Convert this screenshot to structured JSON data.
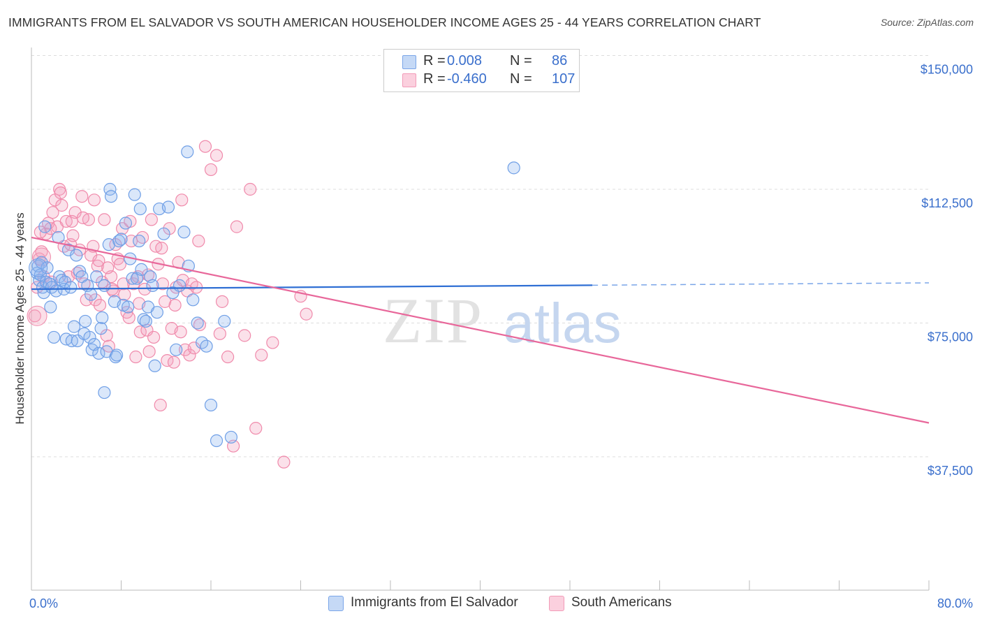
{
  "title": "IMMIGRANTS FROM EL SALVADOR VS SOUTH AMERICAN HOUSEHOLDER INCOME AGES 25 - 44 YEARS CORRELATION CHART",
  "source": "Source: ZipAtlas.com",
  "colors": {
    "blue": "#6f9fe6",
    "blue_line": "#2f6fd4",
    "pink": "#f08aab",
    "pink_line": "#e8679a",
    "tick_label": "#3a6fcc"
  },
  "legend": {
    "row1": {
      "r_label": "R =",
      "r_value": "0.008",
      "n_label": "N =",
      "n_value": "86"
    },
    "row2": {
      "r_label": "R =",
      "r_value": "-0.460",
      "n_label": "N =",
      "n_value": "107"
    }
  },
  "bottom_legend": {
    "series1": "Immigrants from El Salvador",
    "series2": "South Americans"
  },
  "chart_data": {
    "type": "scatter",
    "xlabel": "",
    "ylabel": "Householder Income Ages 25 - 44 years",
    "x_tick_labels": [
      "0.0%",
      "80.0%"
    ],
    "y_tick_labels": [
      "$150,000",
      "$112,500",
      "$75,000",
      "$37,500"
    ],
    "xlim": [
      0,
      80
    ],
    "ylim": [
      0,
      155000
    ],
    "grid": "horizontal-dashed",
    "legend_position": "top-center",
    "series": [
      {
        "name": "Immigrants from El Salvador",
        "color": "#6f9fe6",
        "trend": {
          "x": [
            0,
            50
          ],
          "y": [
            84500,
            85600
          ],
          "dashed_extension_to": 80
        },
        "points": [
          [
            0.5,
            89000
          ],
          [
            0.6,
            91000
          ],
          [
            0.7,
            87000
          ],
          [
            0.8,
            88500
          ],
          [
            0.9,
            92000
          ],
          [
            1.0,
            85000
          ],
          [
            1.1,
            83500
          ],
          [
            1.2,
            102000
          ],
          [
            1.3,
            86500
          ],
          [
            1.4,
            90500
          ],
          [
            1.6,
            86000
          ],
          [
            1.7,
            79500
          ],
          [
            1.8,
            85000
          ],
          [
            2.0,
            71000
          ],
          [
            2.2,
            84000
          ],
          [
            2.4,
            99000
          ],
          [
            2.5,
            88000
          ],
          [
            2.7,
            87000
          ],
          [
            2.9,
            84500
          ],
          [
            3.0,
            86500
          ],
          [
            3.1,
            70500
          ],
          [
            3.3,
            95500
          ],
          [
            3.5,
            85000
          ],
          [
            3.6,
            70000
          ],
          [
            3.8,
            74000
          ],
          [
            4.0,
            94000
          ],
          [
            4.1,
            70000
          ],
          [
            4.3,
            89500
          ],
          [
            4.5,
            88000
          ],
          [
            4.7,
            72000
          ],
          [
            4.8,
            75500
          ],
          [
            5.0,
            85500
          ],
          [
            5.2,
            71000
          ],
          [
            5.4,
            67500
          ],
          [
            5.6,
            69000
          ],
          [
            5.8,
            88000
          ],
          [
            6.0,
            66500
          ],
          [
            6.2,
            73500
          ],
          [
            6.3,
            76500
          ],
          [
            6.5,
            85500
          ],
          [
            6.7,
            67000
          ],
          [
            6.9,
            97000
          ],
          [
            7.0,
            112500
          ],
          [
            7.1,
            110500
          ],
          [
            7.4,
            81000
          ],
          [
            7.5,
            65500
          ],
          [
            7.6,
            66000
          ],
          [
            7.8,
            98000
          ],
          [
            8.0,
            98500
          ],
          [
            8.2,
            80000
          ],
          [
            8.4,
            103000
          ],
          [
            8.6,
            79500
          ],
          [
            8.8,
            93000
          ],
          [
            9.0,
            87500
          ],
          [
            9.2,
            111000
          ],
          [
            9.4,
            87500
          ],
          [
            9.6,
            98000
          ],
          [
            9.8,
            90000
          ],
          [
            10.0,
            76000
          ],
          [
            10.2,
            75500
          ],
          [
            10.4,
            79500
          ],
          [
            10.6,
            88000
          ],
          [
            10.8,
            85500
          ],
          [
            11.0,
            63000
          ],
          [
            11.2,
            78000
          ],
          [
            11.4,
            107000
          ],
          [
            11.8,
            100000
          ],
          [
            12.2,
            107500
          ],
          [
            12.6,
            83500
          ],
          [
            12.9,
            67500
          ],
          [
            13.2,
            85500
          ],
          [
            13.6,
            100500
          ],
          [
            14.0,
            91000
          ],
          [
            14.4,
            81500
          ],
          [
            14.8,
            75000
          ],
          [
            15.2,
            69500
          ],
          [
            15.6,
            68500
          ],
          [
            16.0,
            52000
          ],
          [
            16.5,
            42000
          ],
          [
            17.2,
            75500
          ],
          [
            17.8,
            43000
          ],
          [
            5.3,
            83000
          ],
          [
            13.9,
            123000
          ],
          [
            9.7,
            107000
          ],
          [
            43.0,
            118500
          ],
          [
            6.5,
            55500
          ]
        ]
      },
      {
        "name": "South Americans",
        "color": "#f08aab",
        "trend": {
          "x": [
            0,
            80
          ],
          "y": [
            99000,
            47000
          ]
        },
        "points": [
          [
            0.3,
            77000
          ],
          [
            0.5,
            85000
          ],
          [
            0.7,
            93000
          ],
          [
            0.9,
            95000
          ],
          [
            1.1,
            88000
          ],
          [
            1.3,
            100000
          ],
          [
            1.5,
            103000
          ],
          [
            1.7,
            101500
          ],
          [
            1.9,
            106000
          ],
          [
            2.1,
            109500
          ],
          [
            2.3,
            102000
          ],
          [
            2.5,
            112500
          ],
          [
            2.7,
            108000
          ],
          [
            2.9,
            96500
          ],
          [
            3.1,
            103500
          ],
          [
            3.3,
            88000
          ],
          [
            3.5,
            97000
          ],
          [
            3.7,
            99500
          ],
          [
            3.9,
            106000
          ],
          [
            4.1,
            89000
          ],
          [
            4.3,
            95500
          ],
          [
            4.5,
            110500
          ],
          [
            4.7,
            86000
          ],
          [
            4.9,
            81500
          ],
          [
            5.1,
            104000
          ],
          [
            5.3,
            94000
          ],
          [
            5.5,
            96500
          ],
          [
            5.7,
            81500
          ],
          [
            5.9,
            91000
          ],
          [
            6.1,
            80000
          ],
          [
            6.3,
            86500
          ],
          [
            6.5,
            104000
          ],
          [
            6.7,
            71500
          ],
          [
            6.9,
            68500
          ],
          [
            7.1,
            88000
          ],
          [
            7.3,
            84000
          ],
          [
            7.5,
            97000
          ],
          [
            7.7,
            93000
          ],
          [
            7.9,
            91500
          ],
          [
            8.1,
            101500
          ],
          [
            8.3,
            83000
          ],
          [
            8.5,
            78000
          ],
          [
            8.7,
            76500
          ],
          [
            8.9,
            98000
          ],
          [
            9.1,
            86000
          ],
          [
            9.3,
            65500
          ],
          [
            9.5,
            88000
          ],
          [
            9.7,
            72500
          ],
          [
            9.9,
            99000
          ],
          [
            10.1,
            84500
          ],
          [
            10.3,
            73000
          ],
          [
            10.5,
            67000
          ],
          [
            10.7,
            104000
          ],
          [
            10.9,
            71000
          ],
          [
            11.1,
            96500
          ],
          [
            11.3,
            91500
          ],
          [
            11.5,
            52000
          ],
          [
            11.7,
            86000
          ],
          [
            11.9,
            81000
          ],
          [
            12.1,
            64500
          ],
          [
            12.3,
            101500
          ],
          [
            12.5,
            73500
          ],
          [
            12.7,
            64000
          ],
          [
            12.9,
            85000
          ],
          [
            13.1,
            92000
          ],
          [
            13.3,
            72500
          ],
          [
            13.5,
            87000
          ],
          [
            13.7,
            67500
          ],
          [
            13.9,
            84000
          ],
          [
            14.1,
            66000
          ],
          [
            14.3,
            86000
          ],
          [
            14.5,
            68000
          ],
          [
            14.7,
            85000
          ],
          [
            15.0,
            74500
          ],
          [
            15.5,
            124500
          ],
          [
            16.0,
            118000
          ],
          [
            16.5,
            122000
          ],
          [
            17.0,
            81000
          ],
          [
            17.5,
            65500
          ],
          [
            18.0,
            40500
          ],
          [
            19.0,
            71500
          ],
          [
            19.5,
            112500
          ],
          [
            20.0,
            45500
          ],
          [
            20.5,
            66000
          ],
          [
            21.5,
            69500
          ],
          [
            22.5,
            36000
          ],
          [
            24.0,
            82500
          ],
          [
            24.5,
            77500
          ],
          [
            18.3,
            102000
          ],
          [
            16.8,
            72000
          ],
          [
            14.9,
            98000
          ],
          [
            13.4,
            109500
          ],
          [
            12.8,
            80000
          ],
          [
            11.6,
            96000
          ],
          [
            10.4,
            88500
          ],
          [
            9.6,
            80500
          ],
          [
            8.8,
            103500
          ],
          [
            8.2,
            86000
          ],
          [
            7.2,
            84500
          ],
          [
            6.8,
            90500
          ],
          [
            6.0,
            92500
          ],
          [
            5.6,
            109500
          ],
          [
            4.6,
            104500
          ],
          [
            3.6,
            103500
          ],
          [
            2.6,
            111500
          ],
          [
            1.8,
            86500
          ],
          [
            0.8,
            100500
          ]
        ]
      }
    ]
  }
}
